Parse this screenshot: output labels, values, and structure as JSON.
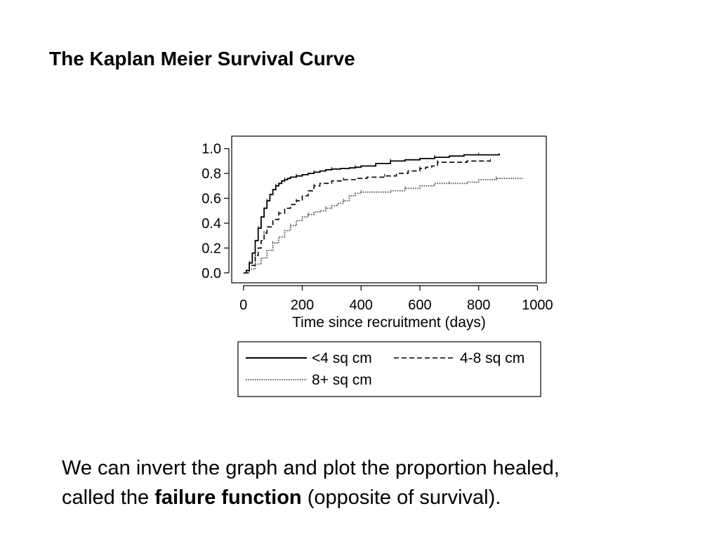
{
  "slide": {
    "title": "The Kaplan Meier Survival Curve",
    "caption_line1": "We can invert the graph and plot the proportion healed,",
    "caption_line2_prefix": "called the ",
    "caption_line2_bold": "failure function",
    "caption_line2_suffix": " (opposite of survival)."
  },
  "chart_data": {
    "type": "line",
    "step": true,
    "xlabel": "Time since recruitment (days)",
    "ylabel": "",
    "xlim": [
      -40,
      1030
    ],
    "ylim": [
      -0.08,
      1.1
    ],
    "xticks": [
      0,
      200,
      400,
      600,
      800,
      1000
    ],
    "xtick_labels": [
      "0",
      "200",
      "400",
      "600",
      "800",
      "1000"
    ],
    "yticks": [
      0.0,
      0.2,
      0.4,
      0.6,
      0.8,
      1.0
    ],
    "ytick_labels": [
      "0.0",
      "0.2",
      "0.4",
      "0.6",
      "0.8",
      "1.0"
    ],
    "grid": false,
    "legend_position": "bottom",
    "series": [
      {
        "name": "<4 sq cm",
        "style": "solid",
        "color": "#000000",
        "x": [
          0,
          10,
          20,
          30,
          40,
          50,
          60,
          70,
          80,
          90,
          100,
          110,
          120,
          130,
          140,
          150,
          160,
          180,
          200,
          220,
          240,
          260,
          280,
          300,
          330,
          360,
          380,
          400,
          450,
          500,
          550,
          600,
          650,
          700,
          750,
          800,
          870
        ],
        "y": [
          0.0,
          0.02,
          0.08,
          0.16,
          0.26,
          0.36,
          0.45,
          0.52,
          0.58,
          0.63,
          0.67,
          0.7,
          0.72,
          0.74,
          0.75,
          0.76,
          0.77,
          0.78,
          0.79,
          0.8,
          0.81,
          0.82,
          0.83,
          0.835,
          0.84,
          0.845,
          0.85,
          0.86,
          0.88,
          0.9,
          0.91,
          0.92,
          0.93,
          0.94,
          0.95,
          0.95,
          0.96
        ]
      },
      {
        "name": "4-8 sq cm",
        "style": "dashed",
        "color": "#000000",
        "x": [
          0,
          20,
          40,
          50,
          60,
          70,
          80,
          100,
          120,
          140,
          160,
          180,
          200,
          220,
          240,
          260,
          300,
          340,
          380,
          420,
          480,
          520,
          560,
          600,
          620,
          640,
          660,
          700,
          760,
          840
        ],
        "y": [
          0.0,
          0.06,
          0.14,
          0.2,
          0.26,
          0.32,
          0.37,
          0.43,
          0.48,
          0.52,
          0.55,
          0.58,
          0.62,
          0.66,
          0.7,
          0.72,
          0.74,
          0.75,
          0.76,
          0.77,
          0.78,
          0.8,
          0.82,
          0.84,
          0.85,
          0.86,
          0.89,
          0.89,
          0.9,
          0.9
        ]
      },
      {
        "name": "8+ sq cm",
        "style": "dotted",
        "color": "#555555",
        "x": [
          0,
          20,
          40,
          60,
          80,
          100,
          120,
          140,
          160,
          180,
          200,
          220,
          240,
          260,
          280,
          300,
          320,
          340,
          360,
          380,
          400,
          450,
          500,
          550,
          600,
          650,
          700,
          760,
          800,
          860,
          950
        ],
        "y": [
          0.0,
          0.03,
          0.07,
          0.12,
          0.18,
          0.24,
          0.29,
          0.34,
          0.38,
          0.42,
          0.45,
          0.47,
          0.49,
          0.5,
          0.52,
          0.54,
          0.56,
          0.58,
          0.62,
          0.64,
          0.65,
          0.65,
          0.66,
          0.68,
          0.7,
          0.72,
          0.72,
          0.73,
          0.75,
          0.76,
          0.76
        ]
      }
    ]
  }
}
